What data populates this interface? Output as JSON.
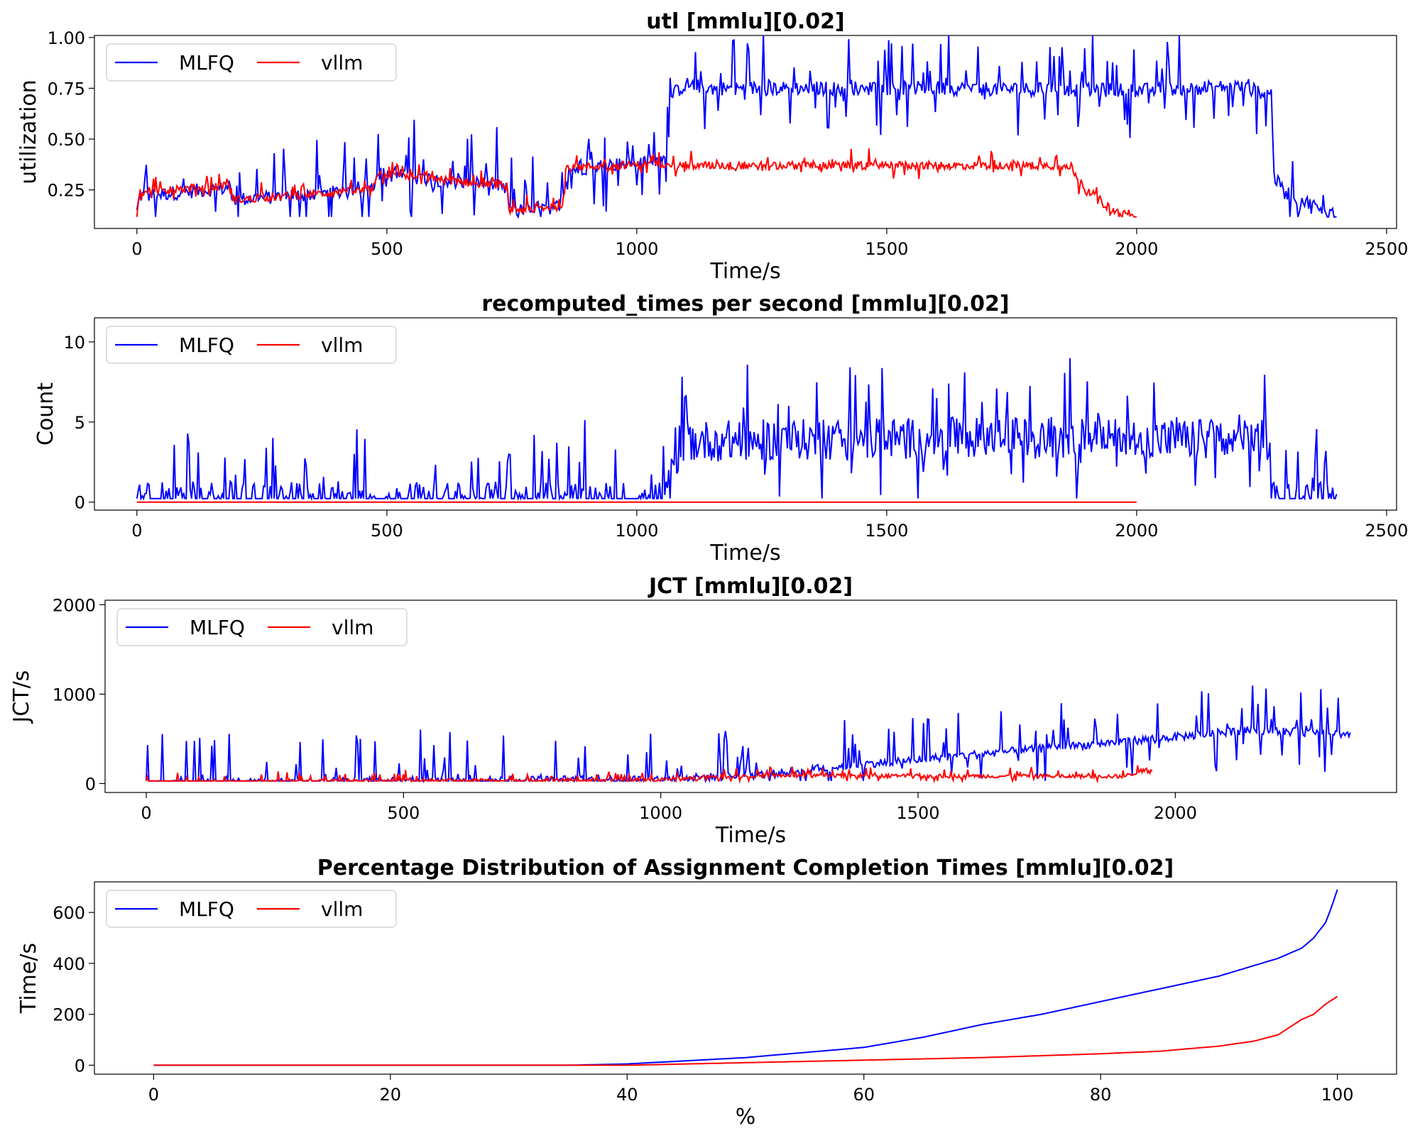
{
  "chart_data": [
    {
      "type": "line",
      "title": "utl [mmlu][0.02]",
      "xlabel": "Time/s",
      "ylabel": "utilization",
      "xlim": [
        -85,
        2520
      ],
      "ylim": [
        0.06,
        1.01
      ],
      "xticks": [
        0,
        500,
        1000,
        1500,
        2000,
        2500
      ],
      "yticks": [
        0.25,
        0.5,
        0.75,
        1.0
      ],
      "ytick_labels": [
        "0.25",
        "0.50",
        "0.75",
        "1.00"
      ],
      "legend": {
        "position": "top-left",
        "columns": 2
      },
      "series": [
        {
          "name": "MLFQ",
          "color": "#0000ff",
          "noise": 0.035,
          "spike": 0.25,
          "x": [
            0,
            5,
            185,
            190,
            470,
            480,
            740,
            745,
            850,
            860,
            1060,
            1070,
            1100,
            1150,
            1600,
            2000,
            2200,
            2270,
            2275,
            2290,
            2330,
            2390,
            2400
          ],
          "y": [
            0.14,
            0.22,
            0.26,
            0.2,
            0.25,
            0.33,
            0.27,
            0.14,
            0.17,
            0.35,
            0.4,
            0.72,
            0.77,
            0.75,
            0.75,
            0.74,
            0.76,
            0.72,
            0.32,
            0.25,
            0.2,
            0.13,
            0.11
          ]
        },
        {
          "name": "vllm",
          "color": "#ff0000",
          "noise": 0.02,
          "spike": 0.06,
          "x": [
            0,
            5,
            185,
            190,
            470,
            480,
            740,
            745,
            850,
            860,
            1060,
            1100,
            1500,
            1870,
            1880,
            1950,
            2000
          ],
          "y": [
            0.14,
            0.24,
            0.27,
            0.2,
            0.25,
            0.33,
            0.27,
            0.15,
            0.17,
            0.36,
            0.38,
            0.37,
            0.37,
            0.37,
            0.3,
            0.15,
            0.11
          ]
        }
      ]
    },
    {
      "type": "line",
      "title": "recomputed_times per second [mmlu][0.02]",
      "xlabel": "Time/s",
      "ylabel": "Count",
      "xlim": [
        -85,
        2520
      ],
      "ylim": [
        -0.5,
        11.5
      ],
      "xticks": [
        0,
        500,
        1000,
        1500,
        2000,
        2500
      ],
      "yticks": [
        0,
        5,
        10
      ],
      "ytick_labels": [
        "0",
        "5",
        "10"
      ],
      "legend": {
        "position": "top-left",
        "columns": 2
      },
      "series": [
        {
          "name": "MLFQ",
          "color": "#0000ff",
          "noise": 1.3,
          "spike": 3.5,
          "x": [
            0,
            1050,
            1060,
            1080,
            1100,
            1600,
            2000,
            2260,
            2270,
            2280,
            2400
          ],
          "y": [
            0,
            0,
            0.5,
            2.0,
            3.8,
            4.0,
            4.0,
            3.8,
            0,
            0,
            0
          ]
        },
        {
          "name": "vllm",
          "color": "#ff0000",
          "noise": 0,
          "spike": 0,
          "x": [
            0,
            2000
          ],
          "y": [
            0,
            0
          ]
        }
      ]
    },
    {
      "type": "line",
      "title": "JCT [mmlu][0.02]",
      "xlabel": "Time/s",
      "ylabel": "JCT/s",
      "xlim": [
        -80,
        2430
      ],
      "ylim": [
        -100,
        2050
      ],
      "xticks": [
        0,
        500,
        1000,
        1500,
        2000
      ],
      "yticks": [
        0,
        1000,
        2000
      ],
      "ytick_labels": [
        "0",
        "1000",
        "2000"
      ],
      "legend": {
        "position": "top-left",
        "columns": 2
      },
      "series": [
        {
          "name": "MLFQ",
          "color": "#0000ff",
          "noise": 45,
          "spike": 500,
          "x": [
            0,
            400,
            1000,
            1200,
            1400,
            1700,
            2000,
            2150,
            2300,
            2340
          ],
          "y": [
            0,
            30,
            50,
            100,
            220,
            370,
            520,
            600,
            560,
            550
          ]
        },
        {
          "name": "vllm",
          "color": "#ff0000",
          "noise": 22,
          "spike": 90,
          "x": [
            0,
            400,
            1000,
            1100,
            1200,
            1500,
            1900,
            1940,
            1955
          ],
          "y": [
            0,
            30,
            40,
            80,
            90,
            85,
            80,
            150,
            160
          ]
        }
      ]
    },
    {
      "type": "line",
      "title": "Percentage Distribution of Assignment Completion Times [mmlu][0.02]",
      "xlabel": "%",
      "ylabel": "Time/s",
      "xlim": [
        -5,
        105
      ],
      "ylim": [
        -35,
        720
      ],
      "xticks": [
        0,
        20,
        40,
        60,
        80,
        100
      ],
      "yticks": [
        0,
        200,
        400,
        600
      ],
      "ytick_labels": [
        "0",
        "200",
        "400",
        "600"
      ],
      "legend": {
        "position": "top-left",
        "columns": 2
      },
      "series": [
        {
          "name": "MLFQ",
          "color": "#0000ff",
          "noise": 0,
          "spike": 0,
          "x": [
            0,
            35,
            40,
            50,
            60,
            65,
            70,
            75,
            80,
            85,
            90,
            95,
            97,
            98,
            99,
            99.5,
            100
          ],
          "y": [
            0,
            0,
            5,
            30,
            70,
            110,
            160,
            200,
            250,
            300,
            350,
            420,
            460,
            500,
            560,
            620,
            690
          ]
        },
        {
          "name": "vllm",
          "color": "#ff0000",
          "noise": 0,
          "spike": 0,
          "x": [
            0,
            40,
            50,
            60,
            70,
            80,
            85,
            90,
            93,
            95,
            96,
            97,
            98,
            99,
            100
          ],
          "y": [
            0,
            0,
            10,
            20,
            30,
            45,
            55,
            75,
            95,
            120,
            150,
            180,
            200,
            240,
            270
          ]
        }
      ]
    }
  ]
}
